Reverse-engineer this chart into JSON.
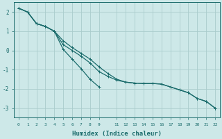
{
  "xlabel": "Humidex (Indice chaleur)",
  "bg_color": "#cde8e8",
  "grid_color": "#aacccc",
  "line_color": "#1a6b6b",
  "xlim": [
    -0.5,
    22.5
  ],
  "ylim": [
    -3.5,
    2.5
  ],
  "xticks": [
    0,
    1,
    2,
    3,
    4,
    5,
    6,
    7,
    8,
    9,
    11,
    12,
    13,
    14,
    15,
    16,
    17,
    18,
    19,
    20,
    21,
    22
  ],
  "yticks": [
    -3,
    -2,
    -1,
    0,
    1,
    2
  ],
  "line1_x": [
    0,
    1,
    2,
    3,
    4,
    5,
    6,
    7,
    8,
    9,
    10,
    11,
    12,
    13,
    14,
    15,
    16,
    17,
    18,
    19,
    20,
    21,
    22
  ],
  "line1_y": [
    2.2,
    2.0,
    1.4,
    1.25,
    1.0,
    0.3,
    0.0,
    -0.3,
    -0.65,
    -1.1,
    -1.35,
    -1.55,
    -1.65,
    -1.7,
    -1.72,
    -1.72,
    -1.75,
    -1.9,
    -2.05,
    -2.2,
    -2.5,
    -2.65,
    -3.0
  ],
  "line2_x": [
    0,
    1,
    2,
    3,
    4,
    5,
    6,
    7,
    8,
    9
  ],
  "line2_y": [
    2.2,
    2.0,
    1.4,
    1.25,
    1.0,
    0.05,
    -0.45,
    -0.95,
    -1.5,
    -1.9
  ],
  "line3_x": [
    0,
    1,
    2,
    3,
    4,
    5,
    6,
    7,
    8,
    9,
    10,
    11,
    12,
    13,
    14,
    15,
    16,
    17,
    18,
    19,
    20,
    21,
    22
  ],
  "line3_y": [
    2.2,
    2.0,
    1.4,
    1.25,
    1.0,
    0.5,
    0.15,
    -0.15,
    -0.45,
    -0.85,
    -1.2,
    -1.5,
    -1.65,
    -1.7,
    -1.72,
    -1.72,
    -1.75,
    -1.9,
    -2.05,
    -2.2,
    -2.5,
    -2.65,
    -3.0
  ]
}
